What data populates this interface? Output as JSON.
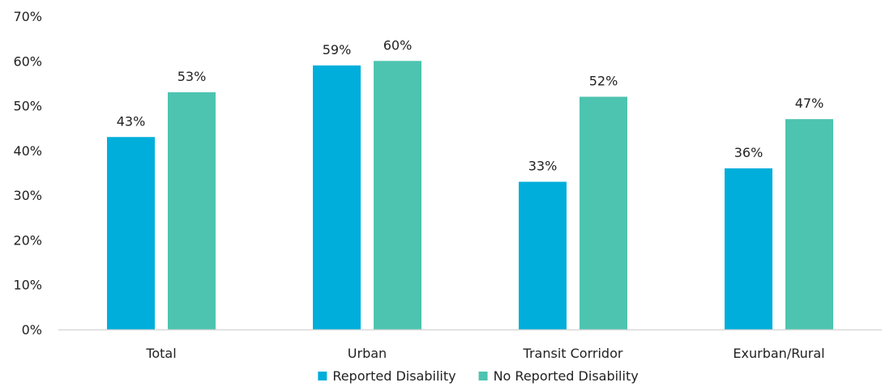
{
  "chart_data": {
    "type": "bar",
    "categories": [
      "Total",
      "Urban",
      "Transit Corridor",
      "Exurban/Rural"
    ],
    "series": [
      {
        "name": "Reported Disability",
        "values": [
          43,
          59,
          33,
          36
        ],
        "color": "#00AEDB"
      },
      {
        "name": "No Reported Disability",
        "values": [
          53,
          60,
          52,
          47
        ],
        "color": "#4DC4B0"
      }
    ],
    "data_labels": [
      [
        "43%",
        "59%",
        "33%",
        "36%"
      ],
      [
        "53%",
        "60%",
        "52%",
        "47%"
      ]
    ],
    "y_ticks": [
      "0%",
      "10%",
      "20%",
      "30%",
      "40%",
      "50%",
      "60%",
      "70%"
    ],
    "ylim": [
      0,
      70
    ],
    "grid": false,
    "legend_position": "bottom",
    "axis_color": "#d9d9d9"
  }
}
